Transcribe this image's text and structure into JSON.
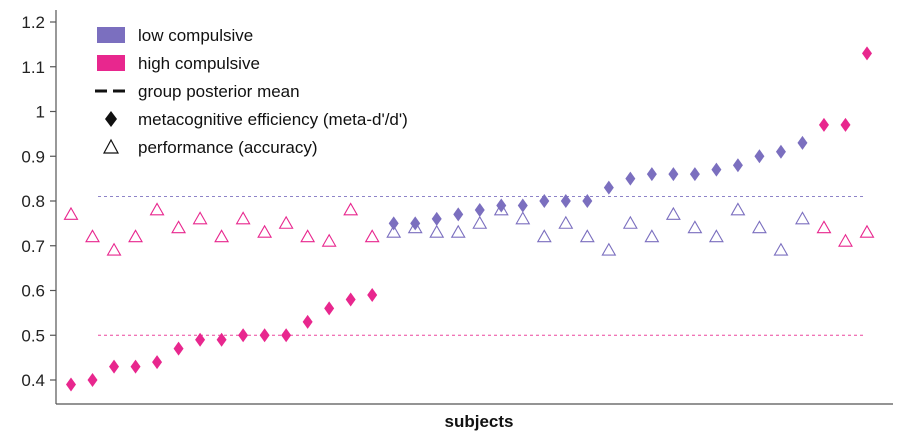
{
  "chart_data": {
    "type": "scatter",
    "title": "",
    "xlabel": "subjects",
    "ylabel": "",
    "ylim": [
      0.35,
      1.2
    ],
    "yticks": [
      0.4,
      0.5,
      0.6,
      0.7,
      0.8,
      0.9,
      1,
      1.1,
      1.2
    ],
    "ytick_labels": [
      "0.4",
      "0.5",
      "0.6",
      "0.7",
      "0.8",
      "0.9",
      "1",
      "1.1",
      "1.2"
    ],
    "xlim": [
      0,
      38
    ],
    "grid": false,
    "legend_position": "top-left",
    "legend": [
      {
        "label": "low compulsive",
        "swatch": "rect",
        "color": "#7b6fbf"
      },
      {
        "label": "high compulsive",
        "swatch": "rect",
        "color": "#e8278e"
      },
      {
        "label": "group posterior mean",
        "swatch": "dashed-line",
        "color": "#111111"
      },
      {
        "label": "metacognitive efficiency (meta-d'/d')",
        "swatch": "filled-diamond",
        "color": "#111111"
      },
      {
        "label": "performance (accuracy)",
        "swatch": "open-triangle",
        "color": "#111111"
      }
    ],
    "group_means": [
      {
        "group": "high compulsive",
        "value": 0.5,
        "color": "#e8278e"
      },
      {
        "group": "low compulsive",
        "value": 0.81,
        "color": "#7b6fbf"
      }
    ],
    "series": [
      {
        "name": "metacognitive efficiency (meta-d'/d')",
        "marker": "diamond",
        "x": [
          1,
          2,
          3,
          4,
          5,
          6,
          7,
          8,
          9,
          10,
          11,
          12,
          13,
          14,
          15,
          16,
          17,
          18,
          19,
          20,
          21,
          22,
          23,
          24,
          25,
          26,
          27,
          28,
          29,
          30,
          31,
          32,
          33,
          34,
          35,
          36,
          37,
          38
        ],
        "y": [
          0.39,
          0.4,
          0.43,
          0.43,
          0.44,
          0.47,
          0.49,
          0.49,
          0.5,
          0.5,
          0.5,
          0.53,
          0.56,
          0.58,
          0.59,
          0.75,
          0.75,
          0.76,
          0.77,
          0.78,
          0.79,
          0.79,
          0.8,
          0.8,
          0.8,
          0.83,
          0.85,
          0.86,
          0.86,
          0.86,
          0.87,
          0.88,
          0.9,
          0.91,
          0.93,
          0.97,
          0.97,
          1.13
        ],
        "group": [
          "high",
          "high",
          "high",
          "high",
          "high",
          "high",
          "high",
          "high",
          "high",
          "high",
          "high",
          "high",
          "high",
          "high",
          "high",
          "low",
          "low",
          "low",
          "low",
          "low",
          "low",
          "low",
          "low",
          "low",
          "low",
          "low",
          "low",
          "low",
          "low",
          "low",
          "low",
          "low",
          "low",
          "low",
          "low",
          "high",
          "high",
          "high"
        ]
      },
      {
        "name": "performance (accuracy)",
        "marker": "triangle-open",
        "x": [
          1,
          2,
          3,
          4,
          5,
          6,
          7,
          8,
          9,
          10,
          11,
          12,
          13,
          14,
          15,
          16,
          17,
          18,
          19,
          20,
          21,
          22,
          23,
          24,
          25,
          26,
          27,
          28,
          29,
          30,
          31,
          32,
          33,
          34,
          35,
          36,
          37,
          38
        ],
        "y": [
          0.77,
          0.72,
          0.69,
          0.72,
          0.78,
          0.74,
          0.76,
          0.72,
          0.76,
          0.73,
          0.75,
          0.72,
          0.71,
          0.78,
          0.72,
          0.73,
          0.74,
          0.73,
          0.73,
          0.75,
          0.78,
          0.76,
          0.72,
          0.75,
          0.72,
          0.69,
          0.75,
          0.72,
          0.77,
          0.74,
          0.72,
          0.78,
          0.74,
          0.69,
          0.76,
          0.74,
          0.71,
          0.73
        ],
        "group": [
          "high",
          "high",
          "high",
          "high",
          "high",
          "high",
          "high",
          "high",
          "high",
          "high",
          "high",
          "high",
          "high",
          "high",
          "high",
          "low",
          "low",
          "low",
          "low",
          "low",
          "low",
          "low",
          "low",
          "low",
          "low",
          "low",
          "low",
          "low",
          "low",
          "low",
          "low",
          "low",
          "low",
          "low",
          "low",
          "high",
          "high",
          "high"
        ]
      }
    ]
  },
  "colors": {
    "low": "#7b6fbf",
    "high": "#e8278e",
    "axis": "#555555"
  }
}
